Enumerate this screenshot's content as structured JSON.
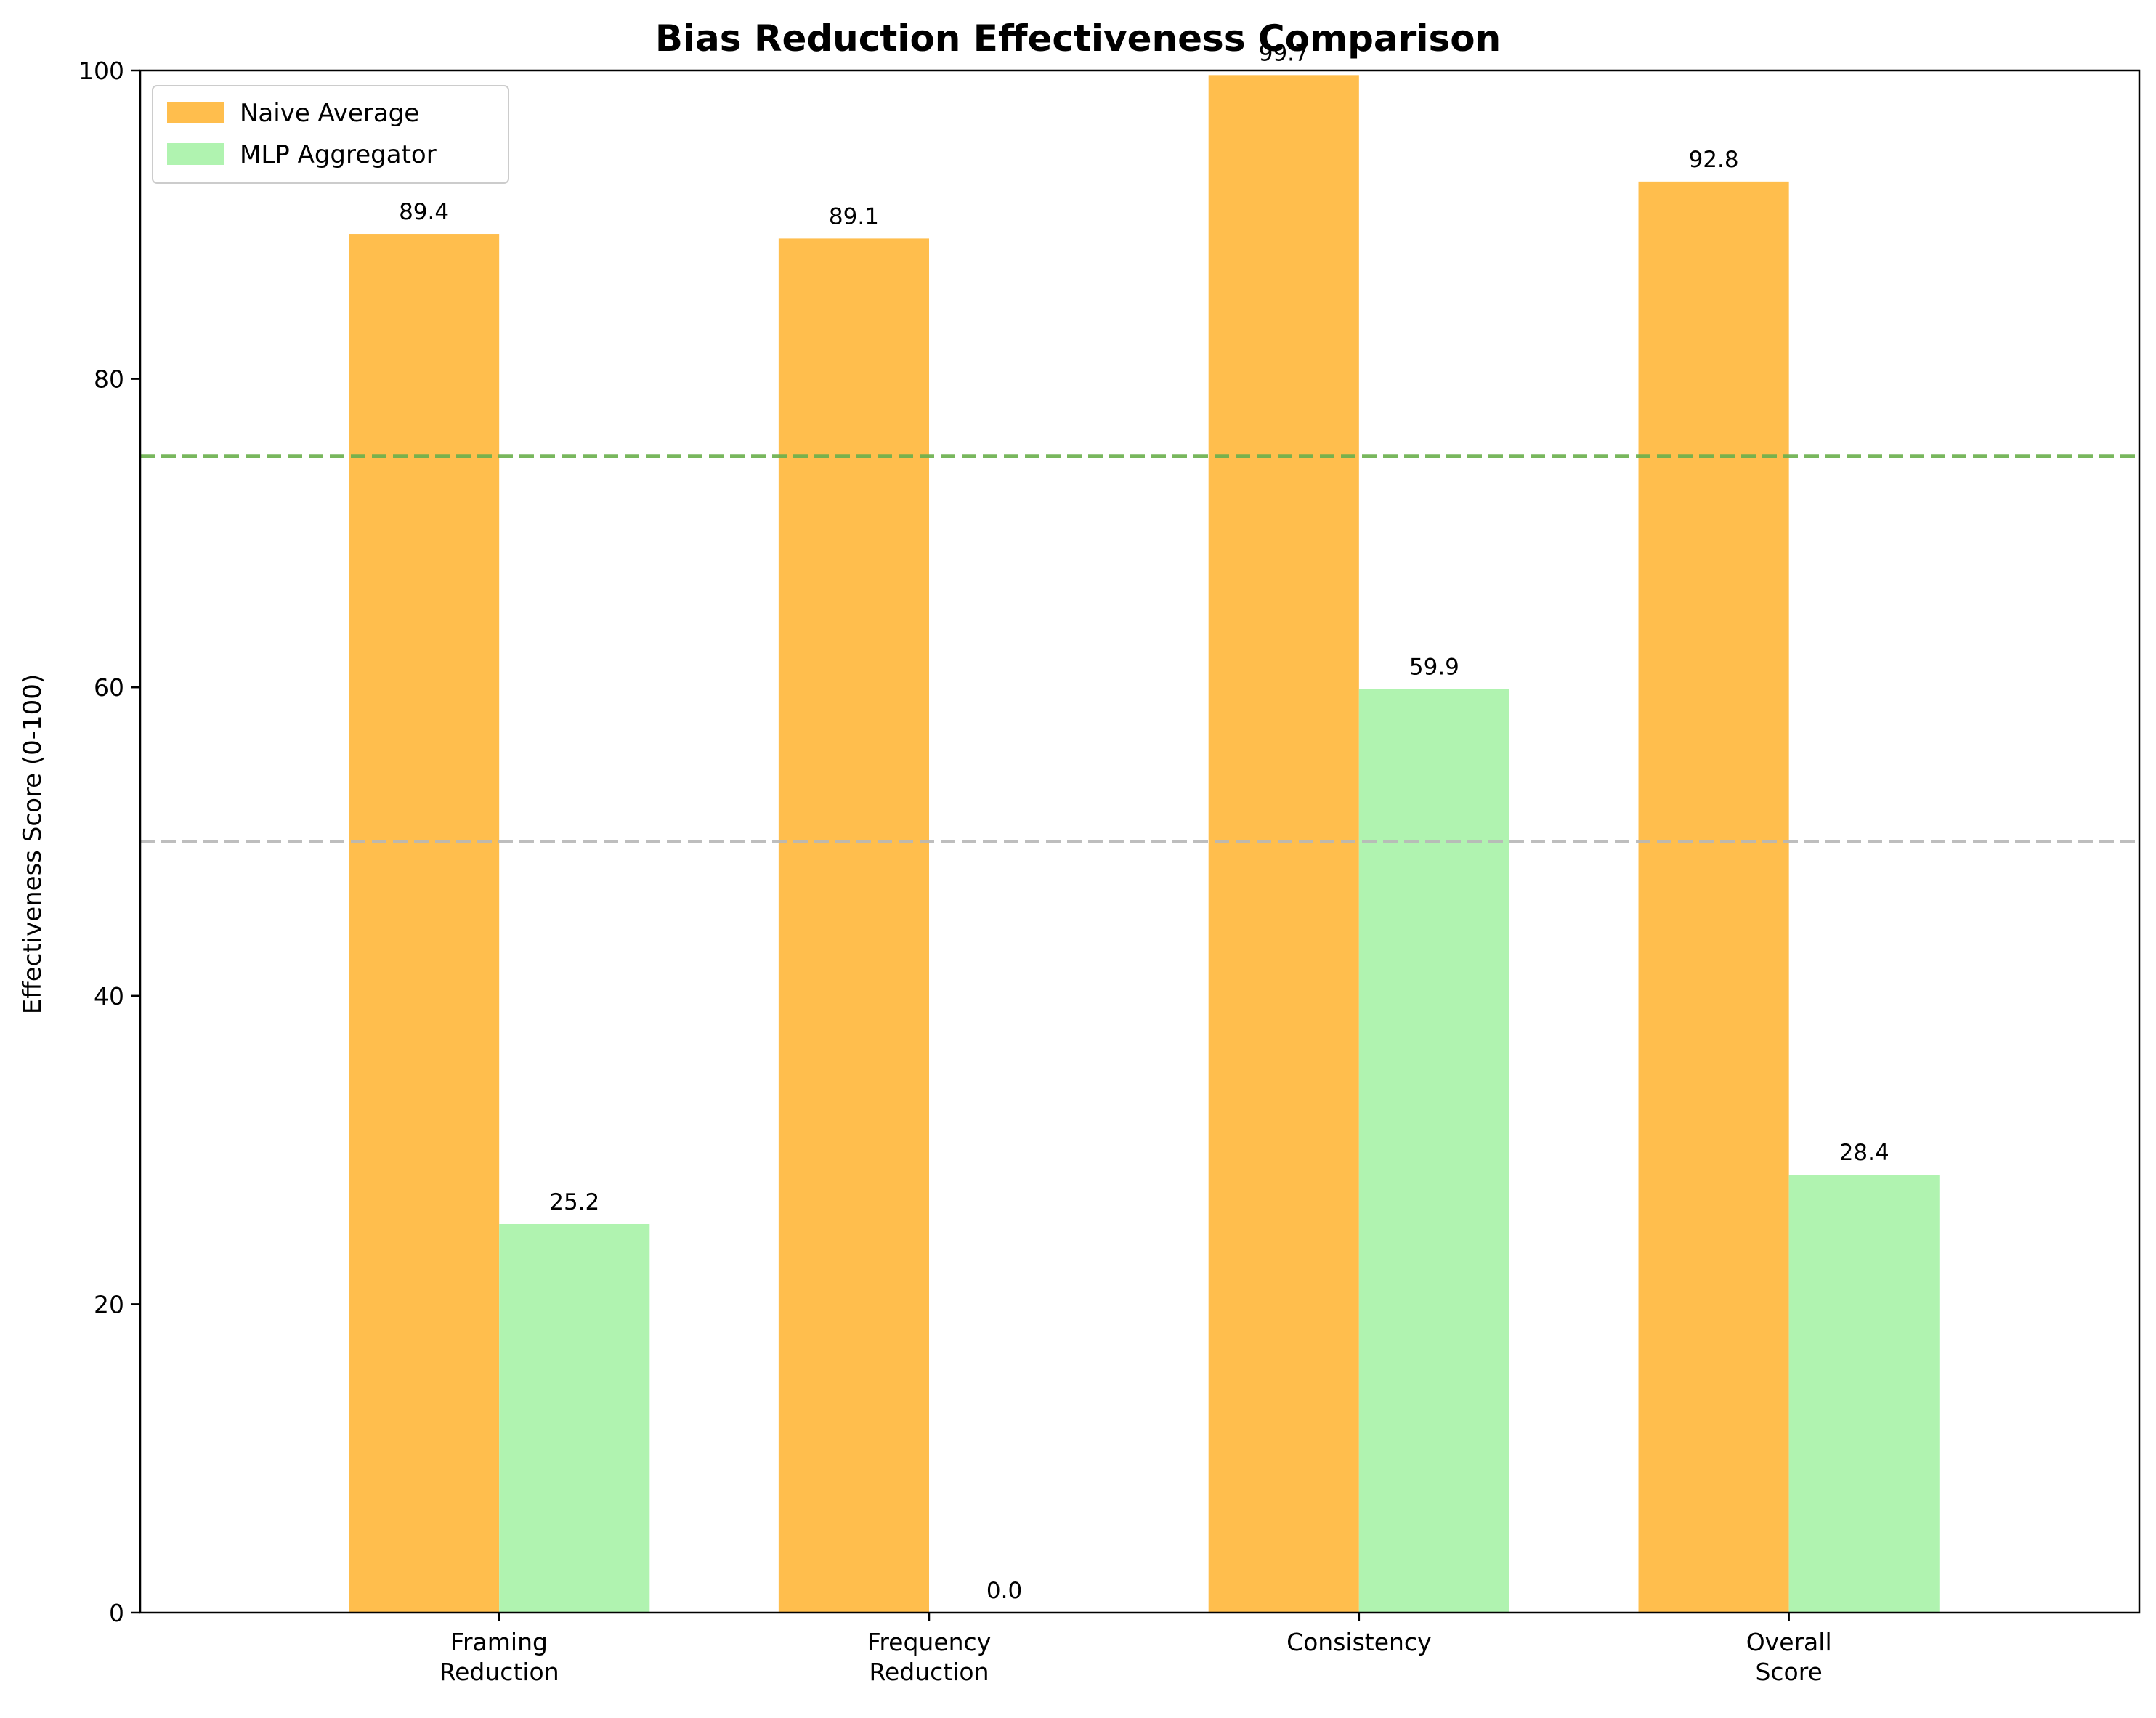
{
  "chart_data": {
    "type": "bar",
    "title": "Bias Reduction Effectiveness Comparison",
    "xlabel": "",
    "ylabel": "Effectiveness Score (0-100)",
    "ylim": [
      0,
      100
    ],
    "yticks": [
      0,
      20,
      40,
      60,
      80,
      100
    ],
    "categories": [
      [
        "Framing",
        "Reduction"
      ],
      [
        "Frequency",
        "Reduction"
      ],
      [
        "Consistency"
      ],
      [
        "Overall",
        "Score"
      ]
    ],
    "series": [
      {
        "name": "Naive Average",
        "color": "#ffbe4d",
        "values": [
          89.4,
          89.1,
          99.7,
          92.8
        ],
        "labels": [
          "89.4",
          "89.1",
          "99.7",
          "92.8"
        ]
      },
      {
        "name": "MLP Aggregator",
        "color": "#b0f3b0",
        "values": [
          25.2,
          0.0,
          59.9,
          28.4
        ],
        "labels": [
          "25.2",
          "0.0",
          "59.9",
          "28.4"
        ]
      }
    ],
    "reference_lines": [
      {
        "value": 75,
        "color": "#6ab04c",
        "style": "dashed"
      },
      {
        "value": 50,
        "color": "#b8b8b8",
        "style": "dashed"
      }
    ],
    "legend_position": "top-left",
    "grid": false
  }
}
